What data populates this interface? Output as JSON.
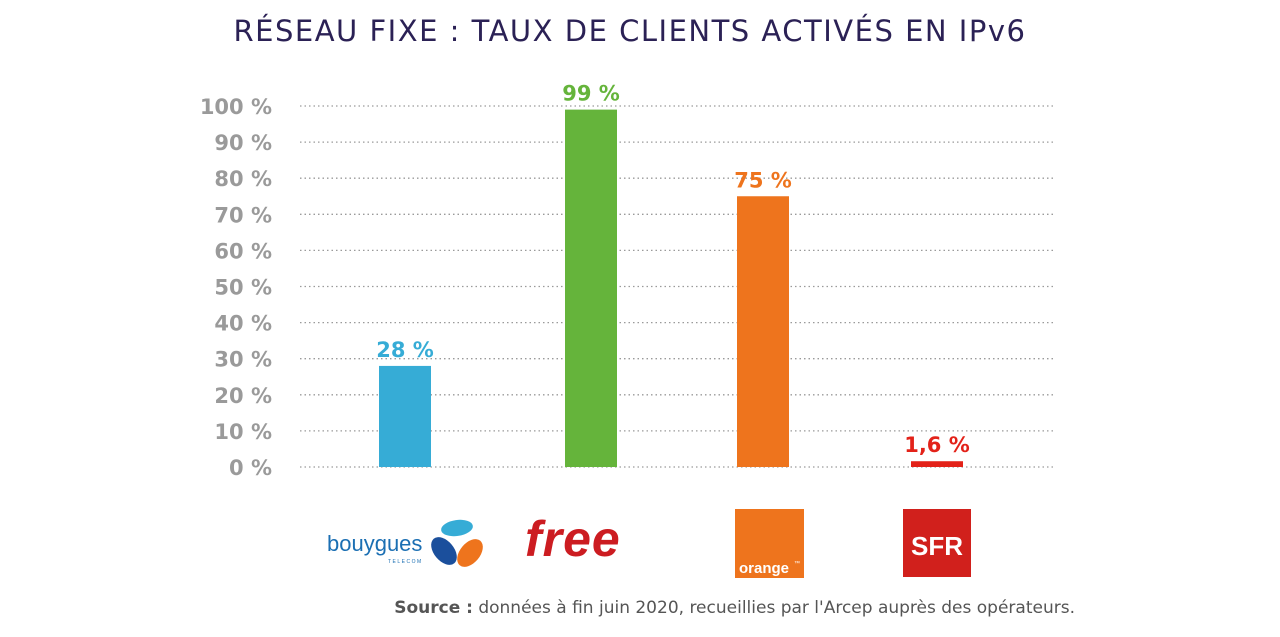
{
  "chart_data": {
    "type": "bar",
    "title": "RÉSEAU FIXE : TAUX DE CLIENTS ACTIVÉS EN IPv6",
    "categories": [
      "bouygues telecom",
      "free",
      "orange",
      "SFR"
    ],
    "values": [
      28,
      99,
      75,
      1.6
    ],
    "value_labels": [
      "28 %",
      "99 %",
      "75 %",
      "1,6 %"
    ],
    "colors": [
      "#36acd6",
      "#65b43b",
      "#ee741d",
      "#e32219"
    ],
    "ylim": [
      0,
      100
    ],
    "yticks": [
      "0 %",
      "10 %",
      "20 %",
      "30 %",
      "40 %",
      "50 %",
      "60 %",
      "70 %",
      "80 %",
      "90 %",
      "100 %"
    ],
    "grid": true,
    "xlabel": "",
    "ylabel": ""
  },
  "logos": {
    "bouygues": {
      "name": "bouygues",
      "sub": "TELECOM"
    },
    "free": {
      "name": "free"
    },
    "orange": {
      "name": "orange",
      "tm": "™"
    },
    "sfr": {
      "name": "SFR"
    }
  },
  "source": {
    "label": "Source :",
    "text": "données à fin juin 2020, recueillies par l'Arcep auprès des opérateurs."
  }
}
